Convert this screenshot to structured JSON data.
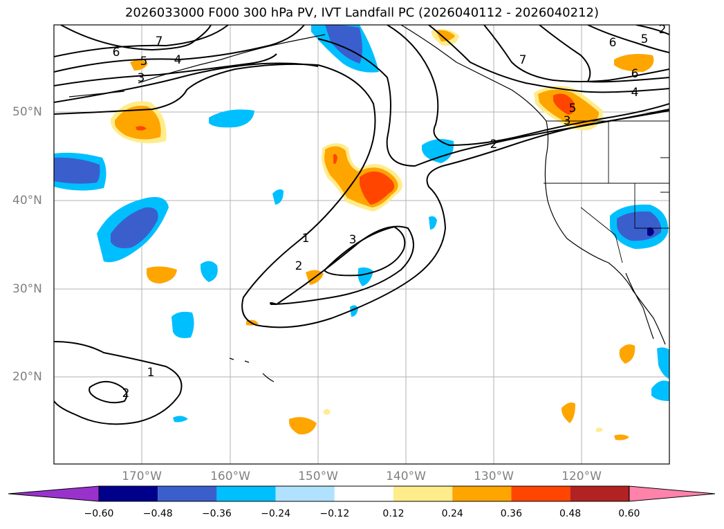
{
  "title": "2026033000 F000 300 hPa PV, IVT Landfall PC (2026040112 - 2026040212)",
  "map": {
    "lat_labels": [
      "50°N",
      "40°N",
      "30°N",
      "20°N"
    ],
    "lon_labels": [
      "170°W",
      "160°W",
      "150°W",
      "140°W",
      "130°W",
      "120°W"
    ],
    "contour_labels": [
      "7",
      "6",
      "5",
      "4",
      "3",
      "2",
      "1",
      "3",
      "2",
      "1",
      "2",
      "6",
      "5",
      "4",
      "6",
      "7",
      "2",
      "5",
      "3"
    ],
    "contour_color": "#000000",
    "grid": true
  },
  "colorbar": {
    "ticks": [
      "−0.60",
      "−0.48",
      "−0.36",
      "−0.24",
      "−0.12",
      "0.12",
      "0.24",
      "0.36",
      "0.48",
      "0.60"
    ],
    "colors": [
      "#9932cc",
      "#00008b",
      "#3a5fcd",
      "#00bfff",
      "#b0e2ff",
      "#ffffff",
      "#ffec8b",
      "#ffa500",
      "#ff4500",
      "#b22222",
      "#ff82ab"
    ],
    "extend": "both"
  }
}
